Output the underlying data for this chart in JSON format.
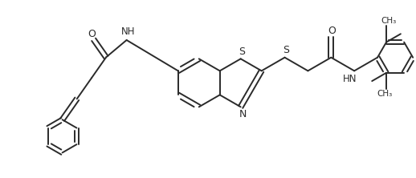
{
  "background_color": "#ffffff",
  "line_color": "#2a2a2a",
  "line_width": 1.4,
  "figsize": [
    5.18,
    2.22
  ],
  "dpi": 100,
  "xlim": [
    0,
    10.5
  ],
  "ylim": [
    0,
    4.5
  ]
}
